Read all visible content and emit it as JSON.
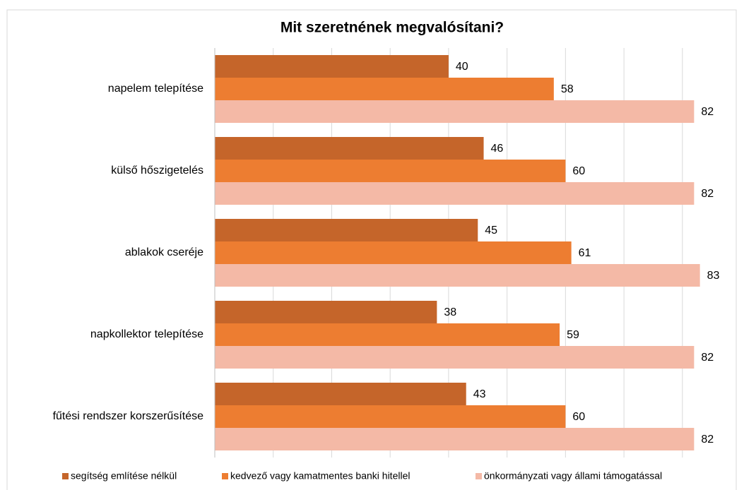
{
  "chart_data": {
    "type": "barh",
    "title": "Mit szeretnének megvalósítani?",
    "categories": [
      "napelem telepítése",
      "külső hőszigetelés",
      "ablakok cseréje",
      "napkollektor telepítése",
      "fűtési rendszer korszerűsítése"
    ],
    "series": [
      {
        "name": "segítség említése nélkül",
        "color": "#c5652a",
        "values": [
          40,
          46,
          45,
          38,
          43
        ]
      },
      {
        "name": "kedvező vagy kamatmentes banki hitellel",
        "color": "#ed7d31",
        "values": [
          58,
          60,
          61,
          59,
          60
        ]
      },
      {
        "name": "önkormányzati vagy állami támogatással",
        "color": "#f4b9a6",
        "values": [
          82,
          82,
          83,
          82,
          82
        ]
      }
    ],
    "xlim": [
      0,
      88
    ],
    "xticks": [
      0,
      10,
      20,
      30,
      40,
      50,
      60,
      70,
      80
    ],
    "grid": true,
    "legend": "bottom"
  }
}
